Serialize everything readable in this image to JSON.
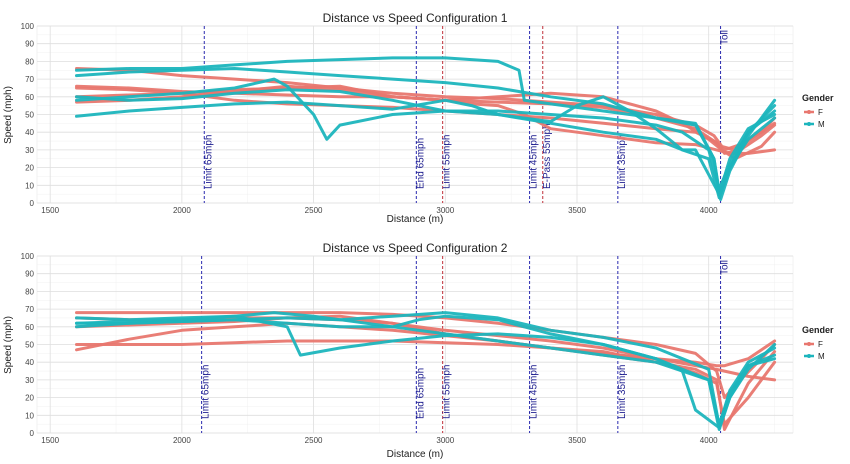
{
  "chart_data": [
    {
      "type": "line",
      "title": "Distance vs Speed Configuration 1",
      "xlabel": "Distance (m)",
      "ylabel": "Speed (mph)",
      "xlim": [
        1450,
        4320
      ],
      "ylim": [
        0,
        100
      ],
      "xticks": [
        1500,
        2000,
        2500,
        3000,
        3500,
        4000
      ],
      "yticks": [
        0,
        10,
        20,
        30,
        40,
        50,
        60,
        70,
        80,
        90,
        100
      ],
      "grid": true,
      "legend": {
        "title": "Gender",
        "position": "right",
        "entries": [
          {
            "label": "F",
            "color": "#e8776f"
          },
          {
            "label": "M",
            "color": "#1cb5bd"
          }
        ]
      },
      "markers": [
        {
          "label": "Limit 65mph",
          "x": 2085,
          "color": "#2a2ab0"
        },
        {
          "label": "End 65mph",
          "x": 2890,
          "color": "#2a2ab0"
        },
        {
          "label": "Limit 55mph",
          "x": 2990,
          "color": "#c0303a"
        },
        {
          "label": "Limit 45mph",
          "x": 3320,
          "color": "#2a2ab0"
        },
        {
          "label": "E-Pass 55mph",
          "x": 3370,
          "color": "#c0303a"
        },
        {
          "label": "Limit 35mph",
          "x": 3655,
          "color": "#2a2ab0"
        },
        {
          "label": "Toll",
          "x": 4045,
          "color": "#2a2ab0"
        }
      ],
      "series": [
        {
          "group": "F",
          "x": [
            1600,
            1800,
            2000,
            2200,
            2400,
            2600,
            2800,
            3000,
            3200,
            3400,
            3600,
            3800,
            3950,
            4020,
            4050,
            4100,
            4200,
            4250
          ],
          "y": [
            76,
            75,
            72,
            70,
            68,
            65,
            62,
            60,
            59,
            57,
            55,
            50,
            44,
            38,
            32,
            30,
            40,
            48
          ]
        },
        {
          "group": "F",
          "x": [
            1600,
            1800,
            2000,
            2200,
            2400,
            2600,
            2800,
            3000,
            3200,
            3400,
            3600,
            3800,
            3950,
            4030,
            4060,
            4120,
            4200,
            4250
          ],
          "y": [
            66,
            65,
            63,
            62,
            61,
            60,
            60,
            58,
            57,
            56,
            54,
            48,
            42,
            34,
            28,
            30,
            38,
            44
          ]
        },
        {
          "group": "F",
          "x": [
            1600,
            1800,
            2000,
            2200,
            2400,
            2600,
            2800,
            3000,
            3200,
            3400,
            3600,
            3800,
            3900,
            4000,
            4050,
            4100,
            4200,
            4250
          ],
          "y": [
            60,
            61,
            62,
            64,
            65,
            66,
            60,
            58,
            60,
            62,
            60,
            52,
            45,
            36,
            30,
            25,
            32,
            40
          ]
        },
        {
          "group": "F",
          "x": [
            1600,
            1800,
            2000,
            2200,
            2400,
            2600,
            2800,
            3000,
            3100,
            3200,
            3300,
            3400,
            3600,
            3800,
            3950,
            4030,
            4080,
            4150,
            4250
          ],
          "y": [
            57,
            58,
            60,
            63,
            66,
            64,
            60,
            58,
            56,
            55,
            50,
            42,
            38,
            34,
            33,
            30,
            28,
            28,
            30
          ]
        },
        {
          "group": "F",
          "x": [
            1600,
            1800,
            2000,
            2200,
            2400,
            2600,
            2800,
            3000,
            3200,
            3400,
            3600,
            3800,
            3950,
            4020,
            4060,
            4120,
            4200,
            4250
          ],
          "y": [
            65,
            64,
            62,
            58,
            56,
            55,
            54,
            52,
            50,
            48,
            45,
            42,
            40,
            35,
            30,
            33,
            40,
            45
          ]
        },
        {
          "group": "M",
          "x": [
            1600,
            1800,
            2000,
            2200,
            2400,
            2600,
            2800,
            3000,
            3200,
            3280,
            3300,
            3400,
            3600,
            3800,
            3950,
            4020,
            4040,
            4080,
            4150,
            4250
          ],
          "y": [
            75,
            76,
            76,
            78,
            80,
            81,
            82,
            82,
            80,
            75,
            58,
            56,
            52,
            48,
            45,
            25,
            5,
            20,
            40,
            55
          ]
        },
        {
          "group": "M",
          "x": [
            1600,
            1800,
            2000,
            2200,
            2400,
            2600,
            2800,
            3000,
            3200,
            3400,
            3600,
            3700,
            3800,
            3950,
            4020,
            4045,
            4080,
            4150,
            4250
          ],
          "y": [
            72,
            74,
            75,
            76,
            74,
            72,
            70,
            68,
            65,
            60,
            56,
            52,
            48,
            44,
            25,
            2,
            18,
            38,
            58
          ]
        },
        {
          "group": "M",
          "x": [
            1600,
            1800,
            2000,
            2200,
            2350,
            2400,
            2500,
            2550,
            2600,
            2800,
            3000,
            3200,
            3400,
            3600,
            3800,
            3900,
            4000,
            4040,
            4080,
            4150,
            4250
          ],
          "y": [
            58,
            60,
            62,
            65,
            70,
            66,
            50,
            36,
            44,
            50,
            52,
            52,
            50,
            48,
            44,
            40,
            30,
            8,
            22,
            40,
            52
          ]
        },
        {
          "group": "M",
          "x": [
            1600,
            1800,
            2000,
            2200,
            2400,
            2600,
            2800,
            3000,
            3100,
            3200,
            3400,
            3500,
            3600,
            3700,
            3800,
            3900,
            3950,
            4040,
            4080,
            4150,
            4250
          ],
          "y": [
            49,
            52,
            54,
            56,
            57,
            55,
            53,
            58,
            55,
            50,
            46,
            55,
            60,
            52,
            42,
            30,
            30,
            5,
            25,
            42,
            50
          ]
        },
        {
          "group": "M",
          "x": [
            1600,
            1800,
            2000,
            2200,
            2400,
            2600,
            2800,
            3000,
            3200,
            3400,
            3600,
            3800,
            3900,
            4000,
            4040,
            4080,
            4150,
            4250
          ],
          "y": [
            60,
            58,
            59,
            62,
            64,
            63,
            58,
            52,
            50,
            45,
            40,
            36,
            30,
            25,
            3,
            20,
            36,
            48
          ]
        }
      ]
    },
    {
      "type": "line",
      "title": "Distance vs Speed Configuration 2",
      "xlabel": "Distance (m)",
      "ylabel": "Speed (mph)",
      "xlim": [
        1450,
        4320
      ],
      "ylim": [
        0,
        100
      ],
      "xticks": [
        1500,
        2000,
        2500,
        3000,
        3500,
        4000
      ],
      "yticks": [
        0,
        10,
        20,
        30,
        40,
        50,
        60,
        70,
        80,
        90,
        100
      ],
      "grid": true,
      "legend": {
        "title": "Gender",
        "position": "right",
        "entries": [
          {
            "label": "F",
            "color": "#e8776f"
          },
          {
            "label": "M",
            "color": "#1cb5bd"
          }
        ]
      },
      "markers": [
        {
          "label": "Limit 65mph",
          "x": 2075,
          "color": "#2a2ab0"
        },
        {
          "label": "End 65mph",
          "x": 2890,
          "color": "#2a2ab0"
        },
        {
          "label": "Limit 55mph",
          "x": 2990,
          "color": "#c0303a"
        },
        {
          "label": "Limit 45mph",
          "x": 3320,
          "color": "#2a2ab0"
        },
        {
          "label": "Limit 35mph",
          "x": 3655,
          "color": "#2a2ab0"
        },
        {
          "label": "Toll",
          "x": 4045,
          "color": "#2a2ab0"
        }
      ],
      "series": [
        {
          "group": "F",
          "x": [
            1600,
            1800,
            2000,
            2200,
            2400,
            2600,
            2800,
            3000,
            3200,
            3400,
            3600,
            3800,
            3950,
            4030,
            4060,
            4120,
            4200,
            4250
          ],
          "y": [
            68,
            68,
            68,
            68,
            68,
            68,
            67,
            65,
            62,
            58,
            54,
            50,
            45,
            35,
            20,
            30,
            42,
            50
          ]
        },
        {
          "group": "F",
          "x": [
            1600,
            1800,
            2000,
            2200,
            2400,
            2600,
            2800,
            3000,
            3200,
            3400,
            3600,
            3800,
            3950,
            4030,
            4060,
            4150,
            4250
          ],
          "y": [
            47,
            53,
            58,
            60,
            62,
            60,
            58,
            55,
            52,
            48,
            45,
            42,
            40,
            38,
            38,
            42,
            52
          ]
        },
        {
          "group": "F",
          "x": [
            1600,
            1800,
            2000,
            2200,
            2400,
            2600,
            2800,
            3000,
            3200,
            3400,
            3600,
            3800,
            3950,
            4030,
            4060,
            4150,
            4250
          ],
          "y": [
            60,
            61,
            62,
            63,
            65,
            66,
            62,
            58,
            55,
            52,
            48,
            42,
            38,
            36,
            35,
            32,
            30
          ]
        },
        {
          "group": "F",
          "x": [
            1600,
            1800,
            2000,
            2200,
            2400,
            2600,
            2800,
            3000,
            3200,
            3400,
            3600,
            3800,
            3950,
            4030,
            4060,
            4150,
            4250
          ],
          "y": [
            65,
            64,
            64,
            65,
            65,
            64,
            62,
            56,
            52,
            48,
            44,
            40,
            36,
            30,
            2,
            28,
            46
          ]
        },
        {
          "group": "F",
          "x": [
            1600,
            1800,
            2000,
            2200,
            2400,
            2600,
            2800,
            3000,
            3200,
            3400,
            3600,
            3800,
            3950,
            4030,
            4060,
            4150,
            4250
          ],
          "y": [
            50,
            50,
            50,
            51,
            52,
            52,
            52,
            51,
            50,
            48,
            46,
            40,
            34,
            28,
            5,
            20,
            40
          ]
        },
        {
          "group": "M",
          "x": [
            1600,
            1800,
            2000,
            2200,
            2350,
            2500,
            2600,
            2800,
            3000,
            3200,
            3400,
            3600,
            3800,
            3900,
            4000,
            4040,
            4080,
            4150,
            4250
          ],
          "y": [
            62,
            63,
            64,
            66,
            68,
            66,
            64,
            60,
            56,
            52,
            48,
            44,
            40,
            35,
            30,
            2,
            20,
            36,
            50
          ]
        },
        {
          "group": "M",
          "x": [
            1600,
            1800,
            2000,
            2200,
            2400,
            2600,
            2800,
            3000,
            3200,
            3400,
            3600,
            3800,
            3900,
            4000,
            4040,
            4080,
            4150,
            4250
          ],
          "y": [
            60,
            62,
            63,
            64,
            65,
            64,
            66,
            68,
            65,
            58,
            54,
            48,
            42,
            36,
            4,
            24,
            40,
            48
          ]
        },
        {
          "group": "M",
          "x": [
            1600,
            1800,
            2000,
            2200,
            2400,
            2450,
            2600,
            2800,
            3000,
            3200,
            3400,
            3600,
            3800,
            3900,
            4000,
            4040,
            4080,
            4150,
            4250
          ],
          "y": [
            65,
            64,
            65,
            66,
            60,
            44,
            48,
            52,
            55,
            56,
            54,
            50,
            42,
            36,
            30,
            5,
            22,
            38,
            44
          ]
        },
        {
          "group": "M",
          "x": [
            1600,
            1800,
            2000,
            2200,
            2400,
            2600,
            2800,
            2900,
            3000,
            3200,
            3400,
            3600,
            3800,
            3900,
            3950,
            4040,
            4080,
            4150,
            4250
          ],
          "y": [
            62,
            62,
            63,
            64,
            62,
            60,
            60,
            64,
            66,
            64,
            56,
            50,
            42,
            35,
            13,
            3,
            20,
            38,
            42
          ]
        }
      ]
    }
  ]
}
